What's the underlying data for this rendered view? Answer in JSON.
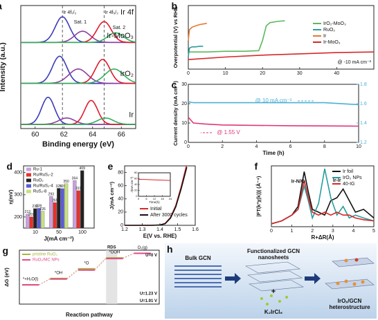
{
  "chart_data": [
    {
      "panel": "a",
      "type": "peak-fit",
      "title": "Ir 4f",
      "xlabel": "Binding energy (eV)",
      "ylabel": "Intensity (a.u.)",
      "xlim": [
        59,
        67
      ],
      "xticks": [
        60,
        62,
        64,
        66
      ],
      "dashed_x": [
        61.9,
        64.8
      ],
      "annotations": [
        "Ir 4f₇/₂",
        "Sat. 1",
        "Ir 4f₅/₂",
        "Sat. 2"
      ],
      "spectra": [
        {
          "name": "Ir-MoO₃",
          "peaks": [
            {
              "color": "#3b3bb8",
              "center": 61.9,
              "height": 0.8,
              "width": 0.5
            },
            {
              "color": "#8a3fa0",
              "center": 63.3,
              "height": 0.35,
              "width": 0.55
            },
            {
              "color": "#e2182a",
              "center": 64.8,
              "height": 0.65,
              "width": 0.5
            },
            {
              "color": "#2bb05a",
              "center": 65.6,
              "height": 0.3,
              "width": 0.55
            }
          ]
        },
        {
          "name": "IrO₂",
          "peaks": [
            {
              "color": "#3b3bb8",
              "center": 61.7,
              "height": 0.85,
              "width": 0.5
            },
            {
              "color": "#8a3fa0",
              "center": 63.0,
              "height": 0.45,
              "width": 0.65
            },
            {
              "color": "#e2182a",
              "center": 64.7,
              "height": 0.75,
              "width": 0.5
            },
            {
              "color": "#2bb05a",
              "center": 65.5,
              "height": 0.45,
              "width": 0.65
            }
          ]
        },
        {
          "name": "Ir",
          "peaks": [
            {
              "color": "#3b3bb8",
              "center": 60.9,
              "height": 0.85,
              "width": 0.45
            },
            {
              "color": "#8a3fa0",
              "center": 62.2,
              "height": 0.2,
              "width": 0.55
            },
            {
              "color": "#e2182a",
              "center": 63.9,
              "height": 0.75,
              "width": 0.45
            },
            {
              "color": "#2bb05a",
              "center": 64.9,
              "height": 0.2,
              "width": 0.55
            }
          ]
        }
      ]
    },
    {
      "panel": "b",
      "type": "line",
      "ylabel": "Overpotential (V) vs RHE",
      "xlim": [
        0,
        50
      ],
      "xticks": [
        0,
        10,
        20,
        30,
        40
      ],
      "ylim": [
        0,
        1
      ],
      "annotation": "@ -10 mA cm⁻²",
      "series": [
        {
          "name": "IrO₂-MoO₃",
          "color": "#5cb85c",
          "x": [
            0,
            2,
            5,
            10,
            15,
            19,
            20,
            21,
            22,
            24,
            26
          ],
          "values": [
            0.27,
            0.27,
            0.27,
            0.28,
            0.28,
            0.29,
            0.45,
            0.68,
            0.73,
            0.75,
            0.76
          ]
        },
        {
          "name": "RuO₂",
          "color": "#2a9d9d",
          "x": [
            0,
            0.3,
            1,
            2,
            3,
            4
          ],
          "values": [
            0.2,
            0.33,
            0.35,
            0.35,
            0.36,
            0.36
          ]
        },
        {
          "name": "Ir",
          "color": "#e8772e",
          "x": [
            0,
            0.3,
            1,
            2,
            3,
            4,
            5
          ],
          "values": [
            0.45,
            0.62,
            0.66,
            0.68,
            0.7,
            0.71,
            0.72
          ]
        },
        {
          "name": "Ir-MoO₃",
          "color": "#d62728",
          "x": [
            0,
            10,
            20,
            30,
            40,
            50
          ],
          "values": [
            0.15,
            0.19,
            0.22,
            0.24,
            0.26,
            0.27
          ]
        }
      ]
    },
    {
      "panel": "c",
      "type": "line",
      "xlabel": "Time (h)",
      "ylabel": "Current density (mA cm⁻²)",
      "xlim": [
        0,
        10
      ],
      "xticks": [
        0,
        2,
        4,
        6,
        8,
        10
      ],
      "ylim": [
        0,
        30
      ],
      "yticks": [
        0,
        10,
        20,
        30
      ],
      "y2lim": [
        1.2,
        1.8
      ],
      "y2ticks": [
        1.2,
        1.4,
        1.6,
        1.8
      ],
      "annotations": [
        "@ 10 mA cm⁻²",
        "@ 1.55 V"
      ],
      "series": [
        {
          "color": "#e0357a",
          "x": [
            0,
            0.3,
            1,
            2,
            4,
            6,
            8,
            10
          ],
          "values": [
            13,
            10,
            9.5,
            9,
            8.8,
            8.6,
            8.5,
            8.4
          ]
        },
        {
          "color": "#4ab0d8",
          "axis": "y2",
          "x": [
            0,
            0.3,
            1,
            2,
            4,
            6,
            8,
            10
          ],
          "values": [
            1.62,
            1.61,
            1.61,
            1.61,
            1.61,
            1.61,
            1.61,
            1.59
          ]
        }
      ]
    },
    {
      "panel": "d",
      "type": "bar",
      "xlabel": "J(mA cm⁻²)",
      "ylabel": "η(mV)",
      "categories": [
        "10",
        "50",
        "100"
      ],
      "ylim": [
        150,
        430
      ],
      "yticks": [
        200,
        300,
        400
      ],
      "series": [
        {
          "name": "Ru-1",
          "color": "#c9a0dc",
          "values": [
            213,
            293,
            364
          ]
        },
        {
          "name": "Ru/RuS₂-2",
          "color": "#e8302a",
          "values": [
            201,
            265,
            319
          ]
        },
        {
          "name": "RuO₂",
          "color": "#222222",
          "values": [
            238,
            329,
            409
          ]
        },
        {
          "name": "Ru/RuS₂-4",
          "color": "#5a5adc",
          "values": [
            239,
            328,
            null
          ]
        },
        {
          "name": "RuS₂-8",
          "color": "#c8e080",
          "values": [
            226,
            350,
            null
          ]
        }
      ]
    },
    {
      "panel": "e",
      "type": "line",
      "xlabel": "E(V vs. RHE)",
      "ylabel": "J(mA cm⁻²)",
      "xlim": [
        1.2,
        1.6
      ],
      "xticks": [
        1.2,
        1.3,
        1.4,
        1.5,
        1.6
      ],
      "ylim": [
        0,
        90
      ],
      "yticks": [
        0,
        20,
        40,
        60,
        80
      ],
      "series": [
        {
          "name": "Initial",
          "color": "#d62728",
          "x": [
            1.2,
            1.35,
            1.4,
            1.43,
            1.46,
            1.49,
            1.52,
            1.55
          ],
          "values": [
            0,
            0,
            0.5,
            3,
            12,
            30,
            58,
            90
          ]
        },
        {
          "name": "After 3000 cycles",
          "color": "#111111",
          "x": [
            1.2,
            1.35,
            1.4,
            1.43,
            1.46,
            1.49,
            1.52,
            1.552
          ],
          "values": [
            0,
            0,
            0.4,
            2.5,
            11,
            28,
            55,
            88
          ]
        }
      ],
      "inset": {
        "xlabel": "Time(h)",
        "ylabel": "J(mA cm⁻²)",
        "xlim": [
          0,
          24
        ],
        "xticks": [
          0,
          6,
          12,
          18,
          24
        ],
        "ylim": [
          0,
          80
        ],
        "yticks": [
          0,
          20,
          40,
          60,
          80
        ],
        "color": "#d62728",
        "x": [
          0,
          6,
          12,
          18,
          24
        ],
        "values": [
          58,
          57,
          56,
          55,
          54
        ]
      }
    },
    {
      "panel": "f",
      "type": "line",
      "xlabel": "R+ΔR(Å)",
      "ylabel": "|FT(k³χ(k))| (Å⁻⁴)",
      "xlim": [
        0,
        5
      ],
      "xticks": [
        0,
        1,
        2,
        3,
        4,
        5
      ],
      "ylim": [
        0,
        1.05
      ],
      "annotations": [
        "Ir-N/O",
        "Ir-Ir"
      ],
      "series": [
        {
          "name": "Ir foil",
          "color": "#111111",
          "x": [
            0,
            0.5,
            1,
            1.3,
            1.6,
            1.8,
            2,
            2.3,
            2.6,
            2.9,
            3.2,
            3.5,
            3.8,
            4.1,
            4.5,
            5
          ],
          "values": [
            0.05,
            0.1,
            0.2,
            0.35,
            0.95,
            0.6,
            0.3,
            0.25,
            0.2,
            0.45,
            0.5,
            0.65,
            0.45,
            0.25,
            0.3,
            0.15
          ]
        },
        {
          "name": "IrO₂ NPs",
          "color": "#2a9d9d",
          "x": [
            0,
            0.5,
            1,
            1.3,
            1.6,
            1.8,
            2,
            2.3,
            2.6,
            2.9,
            3.2,
            3.5,
            3.8,
            4.1,
            4.5,
            5
          ],
          "values": [
            0.05,
            0.1,
            0.2,
            0.3,
            0.7,
            0.45,
            0.15,
            0.4,
            1.0,
            0.5,
            0.2,
            0.35,
            0.15,
            0.2,
            0.15,
            0.1
          ]
        },
        {
          "name": "40-IG",
          "color": "#d62728",
          "x": [
            0,
            0.5,
            1,
            1.3,
            1.6,
            1.8,
            2,
            2.3,
            2.6,
            2.9,
            3.2,
            3.5,
            3.8,
            4.1,
            4.5,
            5
          ],
          "values": [
            0.05,
            0.1,
            0.2,
            0.3,
            0.8,
            0.5,
            0.25,
            0.2,
            0.25,
            0.2,
            0.25,
            0.2,
            0.2,
            0.15,
            0.12,
            0.1
          ]
        }
      ]
    },
    {
      "panel": "g",
      "type": "step",
      "xlabel": "Reaction pathway",
      "ylabel": "ΔG (eV)",
      "categories": [
        "*+H₂O(l)",
        "*OH",
        "*O",
        "*OOH",
        "O₂(g)"
      ],
      "ylim": [
        -3,
        5.4
      ],
      "annotations": [
        "RDS",
        "U=0 V",
        "U=1.23 V",
        "U=1.91 V"
      ],
      "series": [
        {
          "name": "pristine RuO₂",
          "color": "#a9b53b",
          "values": [
            0,
            1.0,
            2.5,
            4.2,
            4.92
          ]
        },
        {
          "name": "RuO₂/MC NPs",
          "color": "#e04a8a",
          "values": [
            0,
            0.9,
            2.3,
            4.1,
            4.92
          ]
        }
      ]
    }
  ],
  "diagram": {
    "panel": "h",
    "bulk": "Bulk GCN",
    "nanosheets": [
      "Functionalized GCN",
      "nanosheets"
    ],
    "plus": "+",
    "precursor": "K₂IrCl₆",
    "product": [
      "IrOₓ/GCN",
      "heterostructure"
    ]
  }
}
